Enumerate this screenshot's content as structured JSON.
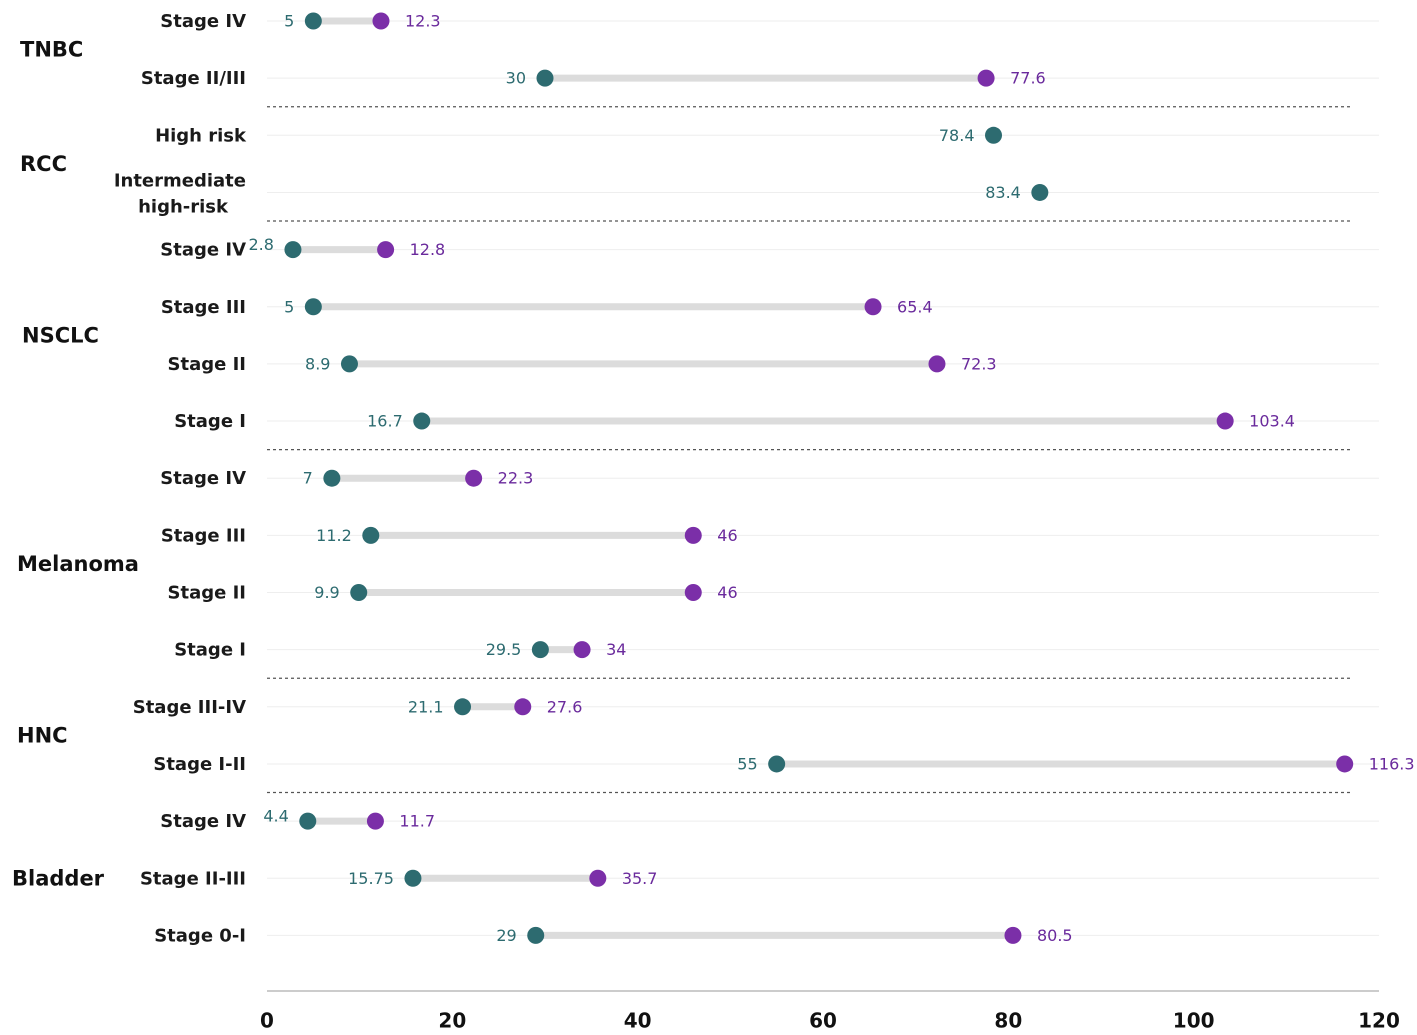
{
  "chart_data": {
    "type": "dumbbell",
    "title": "",
    "xlabel": "",
    "ylabel": "",
    "xlim": [
      0,
      120
    ],
    "x_ticks": [
      0,
      20,
      40,
      60,
      80,
      100,
      120
    ],
    "x_tick_labels": [
      "0",
      "20",
      "40",
      "60",
      "80",
      "100",
      "120"
    ],
    "colors": {
      "start": "#2d6b70",
      "end": "#7b2fa8",
      "connector": "#dcdcdc",
      "separator": "#555555",
      "gridline": "#eeeeee",
      "axis": "#bbbbbb"
    },
    "groups": [
      {
        "name": "TNBC",
        "rows": [
          {
            "label": [
              "Stage IV"
            ],
            "start": 5,
            "start_label": "5",
            "end": 12.3,
            "end_label": "12.3"
          },
          {
            "label": [
              "Stage II/III"
            ],
            "start": 30,
            "start_label": "30",
            "end": 77.6,
            "end_label": "77.6"
          }
        ]
      },
      {
        "name": "RCC",
        "rows": [
          {
            "label": [
              "High risk"
            ],
            "start": 78.4,
            "start_label": "78.4",
            "end": null,
            "end_label": null
          },
          {
            "label": [
              "Intermediate",
              "high-risk"
            ],
            "start": 83.4,
            "start_label": "83.4",
            "end": null,
            "end_label": null
          }
        ]
      },
      {
        "name": "NSCLC",
        "rows": [
          {
            "label": [
              "Stage IV"
            ],
            "start": 2.8,
            "start_label": "2.8",
            "end": 12.8,
            "end_label": "12.8"
          },
          {
            "label": [
              "Stage III"
            ],
            "start": 5,
            "start_label": "5",
            "end": 65.4,
            "end_label": "65.4"
          },
          {
            "label": [
              "Stage II"
            ],
            "start": 8.9,
            "start_label": "8.9",
            "end": 72.3,
            "end_label": "72.3"
          },
          {
            "label": [
              "Stage I"
            ],
            "start": 16.7,
            "start_label": "16.7",
            "end": 103.4,
            "end_label": "103.4"
          }
        ]
      },
      {
        "name": "Melanoma",
        "rows": [
          {
            "label": [
              "Stage IV"
            ],
            "start": 7,
            "start_label": "7",
            "end": 22.3,
            "end_label": "22.3"
          },
          {
            "label": [
              "Stage III"
            ],
            "start": 11.2,
            "start_label": "11.2",
            "end": 46,
            "end_label": "46"
          },
          {
            "label": [
              "Stage II"
            ],
            "start": 9.9,
            "start_label": "9.9",
            "end": 46,
            "end_label": "46"
          },
          {
            "label": [
              "Stage I"
            ],
            "start": 29.5,
            "start_label": "29.5",
            "end": 34,
            "end_label": "34"
          }
        ]
      },
      {
        "name": "HNC",
        "rows": [
          {
            "label": [
              "Stage III-IV"
            ],
            "start": 21.1,
            "start_label": "21.1",
            "end": 27.6,
            "end_label": "27.6"
          },
          {
            "label": [
              "Stage I-II"
            ],
            "start": 55,
            "start_label": "55",
            "end": 116.3,
            "end_label": "116.3"
          }
        ]
      },
      {
        "name": "Bladder",
        "rows": [
          {
            "label": [
              "Stage IV"
            ],
            "start": 4.4,
            "start_label": "4.4",
            "end": 11.7,
            "end_label": "11.7"
          },
          {
            "label": [
              "Stage II-III"
            ],
            "start": 15.75,
            "start_label": "15.75",
            "end": 35.7,
            "end_label": "35.7"
          },
          {
            "label": [
              "Stage 0-I"
            ],
            "start": 29,
            "start_label": "29",
            "end": 80.5,
            "end_label": "80.5"
          }
        ]
      }
    ]
  }
}
